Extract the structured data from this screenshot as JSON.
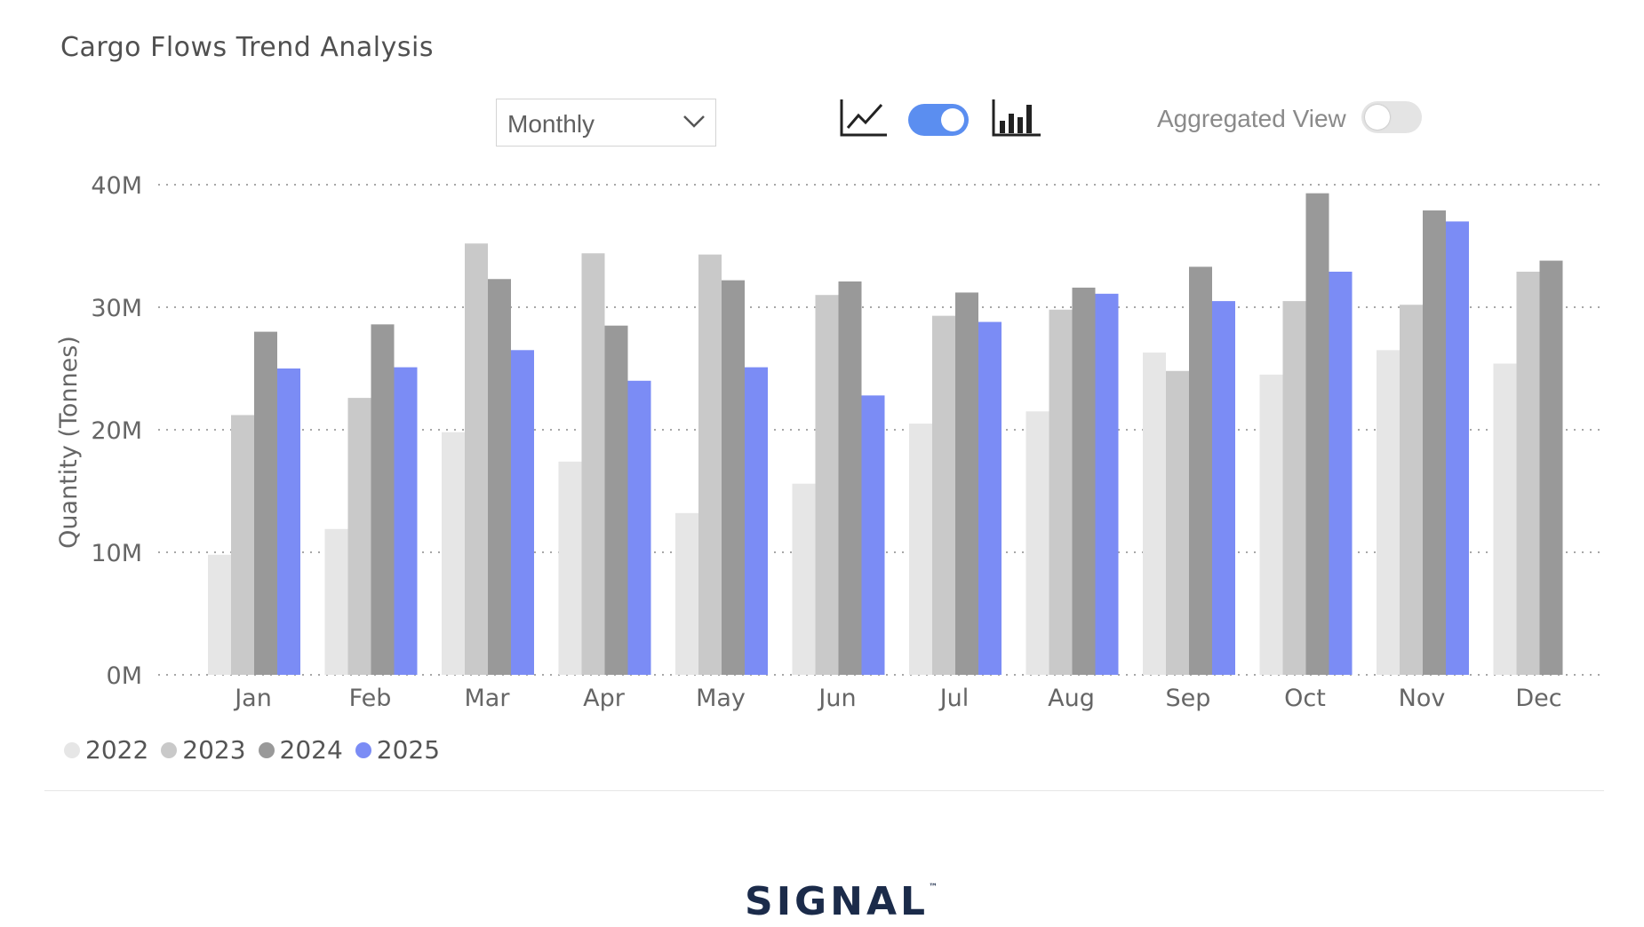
{
  "header": {
    "title": "Cargo Flows Trend Analysis"
  },
  "controls": {
    "period_selected": "Monthly",
    "line_chart_icon": "line-chart-icon",
    "bar_chart_icon": "bar-chart-icon",
    "chart_type_toggle_state": "bar",
    "aggregated_view_label": "Aggregated View",
    "aggregated_view_on": false
  },
  "colors": {
    "2022": "#e6e6e6",
    "2023": "#c9c9c9",
    "2024": "#999999",
    "2025": "#7b8cf5",
    "toggle_on": "#5b8ef0"
  },
  "chart_data": {
    "type": "bar",
    "title": "",
    "xlabel": "",
    "ylabel": "Quantity (Tonnes)",
    "ylim": [
      0,
      40000000
    ],
    "yticks": [
      "0M",
      "10M",
      "20M",
      "30M",
      "40M"
    ],
    "grid": true,
    "legend_position": "bottom-left",
    "categories": [
      "Jan",
      "Feb",
      "Mar",
      "Apr",
      "May",
      "Jun",
      "Jul",
      "Aug",
      "Sep",
      "Oct",
      "Nov",
      "Dec"
    ],
    "series": [
      {
        "name": "2022",
        "values": [
          9.8,
          11.9,
          19.8,
          17.4,
          13.2,
          15.6,
          20.5,
          21.5,
          26.3,
          24.5,
          26.5,
          25.4
        ]
      },
      {
        "name": "2023",
        "values": [
          21.2,
          22.6,
          35.2,
          34.4,
          34.3,
          31.0,
          29.3,
          29.8,
          24.8,
          30.5,
          30.2,
          32.9
        ]
      },
      {
        "name": "2024",
        "values": [
          28.0,
          28.6,
          32.3,
          28.5,
          32.2,
          32.1,
          31.2,
          31.6,
          33.3,
          39.3,
          37.9,
          33.8
        ]
      },
      {
        "name": "2025",
        "values": [
          25.0,
          25.1,
          26.5,
          24.0,
          25.1,
          22.8,
          28.8,
          31.1,
          30.5,
          32.9,
          37.0,
          null
        ]
      }
    ],
    "value_unit_multiplier": 1000000
  },
  "legend": {
    "items": [
      "2022",
      "2023",
      "2024",
      "2025"
    ]
  },
  "footer": {
    "logo_text": "SIGNAL",
    "logo_mark": "™"
  }
}
